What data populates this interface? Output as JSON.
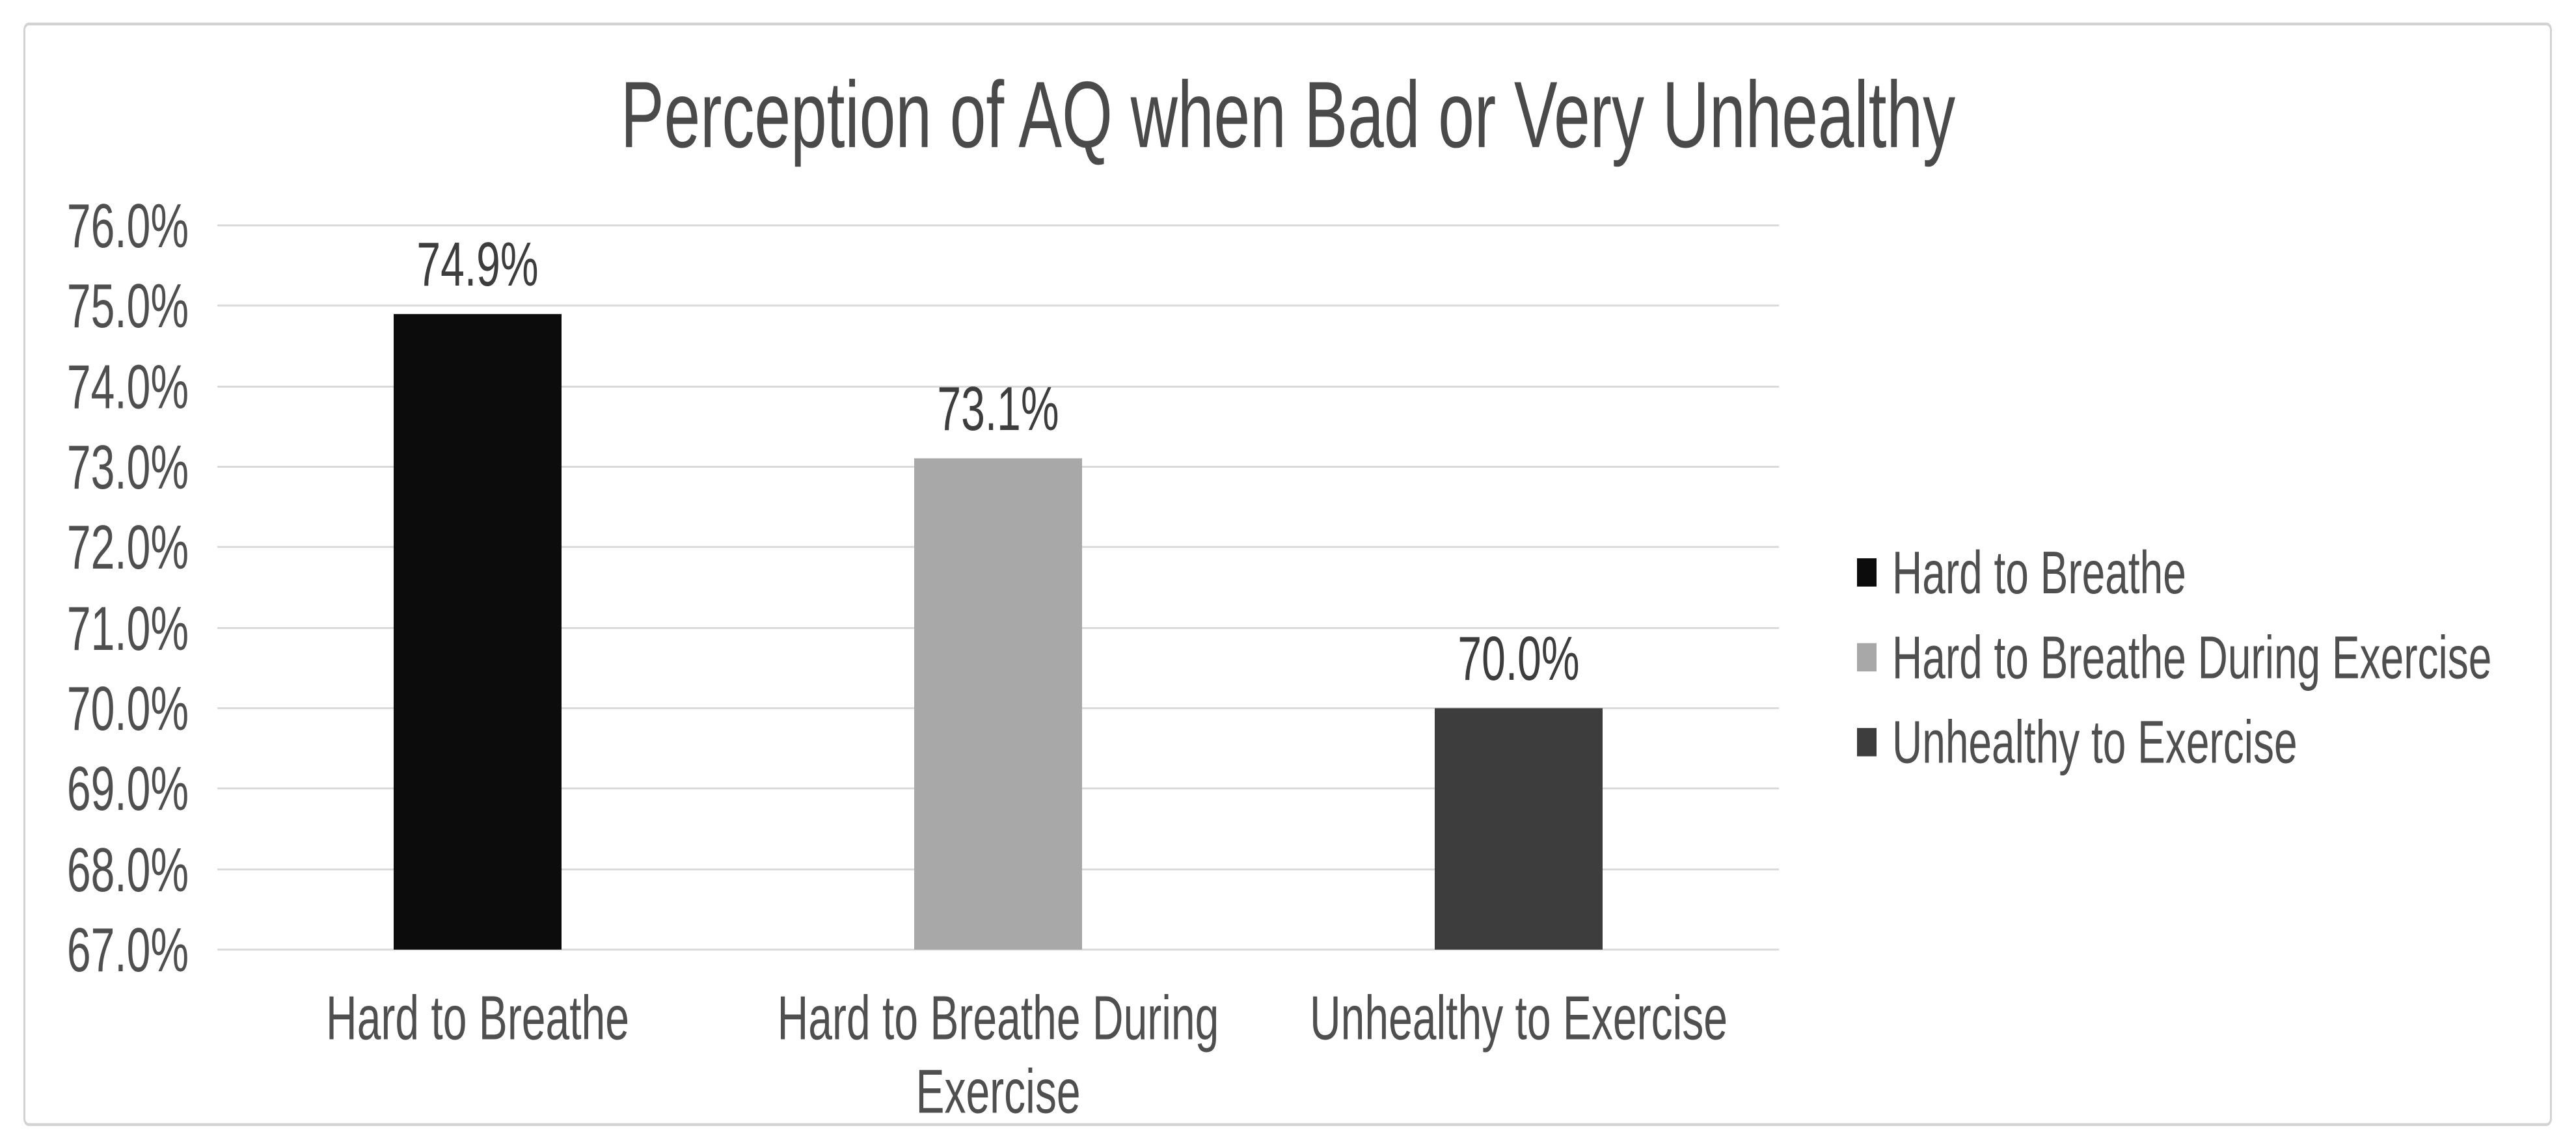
{
  "chart_data": {
    "type": "bar",
    "title": "Perception of AQ when Bad or Very Unhealthy",
    "categories": [
      "Hard to Breathe",
      "Hard to Breathe During Exercise",
      "Unhealthy to Exercise"
    ],
    "values": [
      74.9,
      73.1,
      70.0
    ],
    "value_labels": [
      "74.9%",
      "73.1%",
      "70.0%"
    ],
    "bar_colors": [
      "#0c0c0c",
      "#a8a8a8",
      "#3d3d3d"
    ],
    "xlabel": "",
    "ylabel": "",
    "ylim": [
      67.0,
      76.0
    ],
    "ytick_step": 1.0,
    "ytick_labels": [
      "76.0%",
      "75.0%",
      "74.0%",
      "73.0%",
      "72.0%",
      "71.0%",
      "70.0%",
      "69.0%",
      "68.0%",
      "67.0%"
    ],
    "grid": true,
    "legend": {
      "position": "right",
      "entries": [
        {
          "label": "Hard to Breathe",
          "color": "#0c0c0c"
        },
        {
          "label": "Hard to Breathe During Exercise",
          "color": "#a8a8a8"
        },
        {
          "label": "Unhealthy to Exercise",
          "color": "#3d3d3d"
        }
      ]
    }
  },
  "style": {
    "background": "#ffffff",
    "border_color": "#d2d2d2",
    "grid_color": "#d9d9d9",
    "title_color": "#4a4a4a",
    "axis_text_color": "#4f4f4f",
    "data_label_color": "#3d3d3d"
  }
}
